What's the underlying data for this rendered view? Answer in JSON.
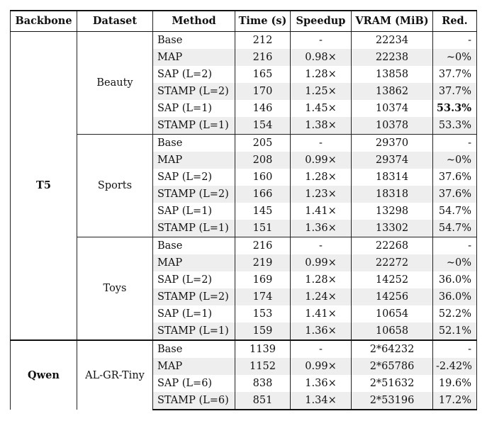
{
  "headers": [
    "Backbone",
    "Dataset",
    "Method",
    "Time (s)",
    "Speedup",
    "VRAM (MiB)",
    "Red."
  ],
  "groups": [
    {
      "backbone": "T5",
      "dataset": "Beauty",
      "rows": [
        {
          "method": "Base",
          "time": "212",
          "speedup": "-",
          "vram": "22234",
          "red": "-"
        },
        {
          "method": "MAP",
          "time": "216",
          "speedup": "0.98×",
          "vram": "22238",
          "red": "~0%"
        },
        {
          "method": "SAP (L=2)",
          "time": "165",
          "speedup": "1.28×",
          "vram": "13858",
          "red": "37.7%"
        },
        {
          "method": "STAMP (L=2)",
          "time": "170",
          "speedup": "1.25×",
          "vram": "13862",
          "red": "37.7%"
        },
        {
          "method": "SAP (L=1)",
          "time": "146",
          "speedup": "1.45×",
          "vram": "10374",
          "red": "53.3%"
        },
        {
          "method": "STAMP (L=1)",
          "time": "154",
          "speedup": "1.38×",
          "vram": "10378",
          "red": "53.3%"
        }
      ]
    },
    {
      "backbone": "T5",
      "dataset": "Sports",
      "rows": [
        {
          "method": "Base",
          "time": "205",
          "speedup": "-",
          "vram": "29370",
          "red": "-"
        },
        {
          "method": "MAP",
          "time": "208",
          "speedup": "0.99×",
          "vram": "29374",
          "red": "~0%"
        },
        {
          "method": "SAP (L=2)",
          "time": "160",
          "speedup": "1.28×",
          "vram": "18314",
          "red": "37.6%"
        },
        {
          "method": "STAMP (L=2)",
          "time": "166",
          "speedup": "1.23×",
          "vram": "18318",
          "red": "37.6%"
        },
        {
          "method": "SAP (L=1)",
          "time": "145",
          "speedup": "1.41×",
          "vram": "13298",
          "red": "54.7%"
        },
        {
          "method": "STAMP (L=1)",
          "time": "151",
          "speedup": "1.36×",
          "vram": "13302",
          "red": "54.7%"
        }
      ]
    },
    {
      "backbone": "T5",
      "dataset": "Toys",
      "rows": [
        {
          "method": "Base",
          "time": "216",
          "speedup": "-",
          "vram": "22268",
          "red": "-"
        },
        {
          "method": "MAP",
          "time": "219",
          "speedup": "0.99×",
          "vram": "22272",
          "red": "~0%"
        },
        {
          "method": "SAP (L=2)",
          "time": "169",
          "speedup": "1.28×",
          "vram": "14252",
          "red": "36.0%"
        },
        {
          "method": "STAMP (L=2)",
          "time": "174",
          "speedup": "1.24×",
          "vram": "14256",
          "red": "36.0%"
        },
        {
          "method": "SAP (L=1)",
          "time": "153",
          "speedup": "1.41×",
          "vram": "10654",
          "red": "52.2%"
        },
        {
          "method": "STAMP (L=1)",
          "time": "159",
          "speedup": "1.36×",
          "vram": "10658",
          "red": "52.1%"
        }
      ]
    },
    {
      "backbone": "Qwen",
      "dataset": "AL-GR-Tiny",
      "rows": [
        {
          "method": "Base",
          "time": "1139",
          "speedup": "-",
          "vram": "2*64232",
          "red": "-"
        },
        {
          "method": "MAP",
          "time": "1152",
          "speedup": "0.99×",
          "vram": "2*65786",
          "red": "-2.42%"
        },
        {
          "method": "SAP (L=6)",
          "time": "838",
          "speedup": "1.36×",
          "vram": "2*51632",
          "red": "19.6%"
        },
        {
          "method": "STAMP (L=6)",
          "time": "851",
          "speedup": "1.34×",
          "vram": "2*53196",
          "red": "17.2%"
        }
      ]
    }
  ],
  "bold_cells": [
    {
      "group": 0,
      "row": 4,
      "col": "red"
    }
  ]
}
